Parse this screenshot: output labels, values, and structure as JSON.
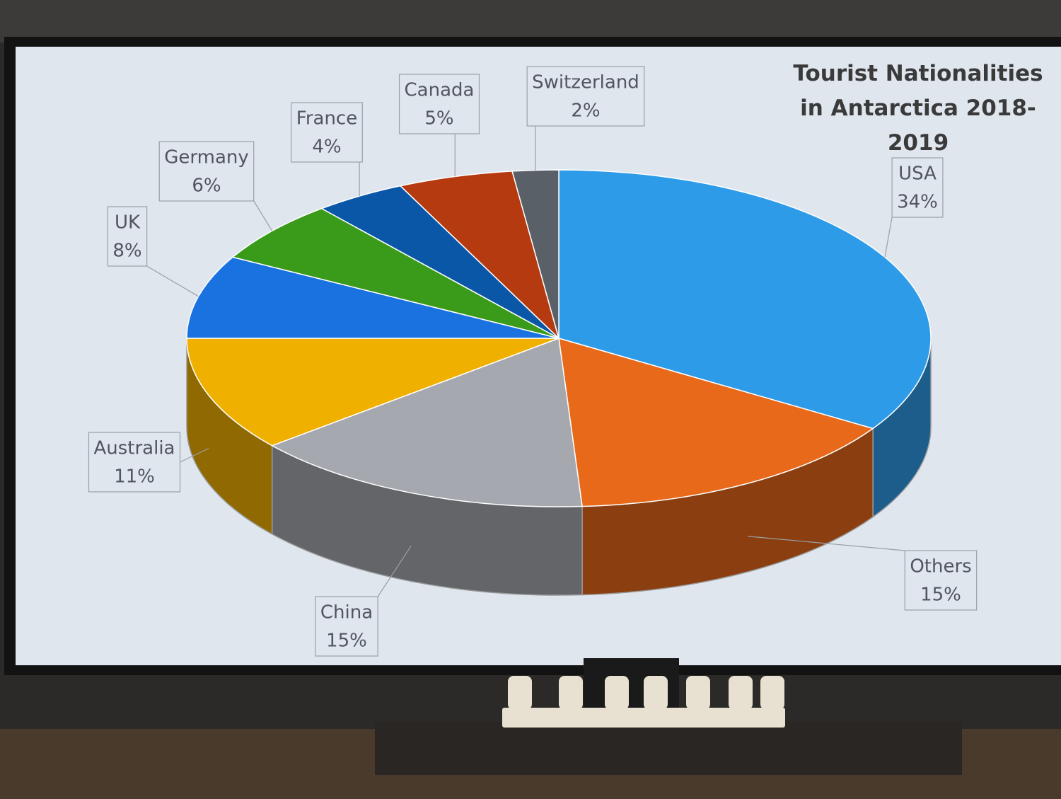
{
  "chart_data": {
    "type": "pie",
    "title": "Tourist Nationalities in Antarctica 2018-2019",
    "categories": [
      "USA",
      "Others",
      "China",
      "Australia",
      "UK",
      "Germany",
      "France",
      "Canada",
      "Switzerland"
    ],
    "values": [
      34,
      15,
      15,
      11,
      8,
      6,
      4,
      5,
      2
    ],
    "value_labels": [
      "34%",
      "15%",
      "15%",
      "11%",
      "8%",
      "6%",
      "4%",
      "5%",
      "2%"
    ],
    "colors": [
      "#2e9be8",
      "#e8691a",
      "#a5a8ae",
      "#f0b000",
      "#1a72e0",
      "#3a9a1a",
      "#0a57a8",
      "#b53a10",
      "#5a6068"
    ]
  }
}
